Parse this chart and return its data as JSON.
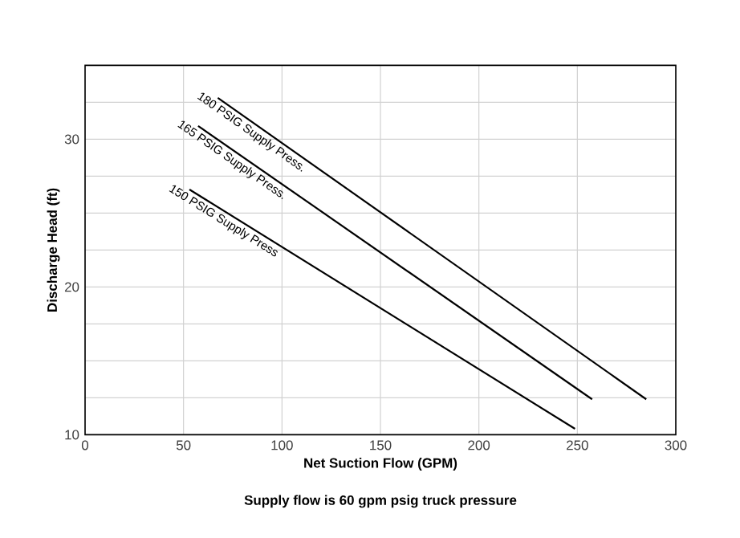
{
  "chart_data": {
    "type": "line",
    "xlabel": "Net Suction Flow (GPM)",
    "ylabel": "Discharge Head (ft)",
    "annotations": [
      "Supply flow is 60 gpm psig truck pressure"
    ],
    "xlim": [
      0,
      300
    ],
    "ylim": [
      10,
      35
    ],
    "xticks": [
      0,
      50,
      100,
      150,
      200,
      250,
      300
    ],
    "yticks": [
      10,
      {
        "value": 12.5,
        "label": null
      },
      {
        "value": 15,
        "label": null
      },
      {
        "value": 17.5,
        "label": null
      },
      20,
      {
        "value": 22.5,
        "label": null
      },
      {
        "value": 25,
        "label": null
      },
      {
        "value": 27.5,
        "label": null
      },
      30,
      {
        "value": 32.5,
        "label": null
      }
    ],
    "grid": true,
    "marker": "none",
    "line_style": "solid",
    "series": [
      {
        "name": "180 PSIG Supply Press.",
        "color": "#000000",
        "x": [
          67.4,
          285
        ],
        "values": [
          32.8,
          12.4
        ]
      },
      {
        "name": "165 PSIG Supply Press.",
        "color": "#000000",
        "x": [
          57.4,
          257.5
        ],
        "values": [
          30.9,
          12.4
        ]
      },
      {
        "name": "150 PSIG Supply Press",
        "color": "#000000",
        "x": [
          53,
          248.8
        ],
        "values": [
          26.6,
          10.4
        ]
      }
    ]
  }
}
